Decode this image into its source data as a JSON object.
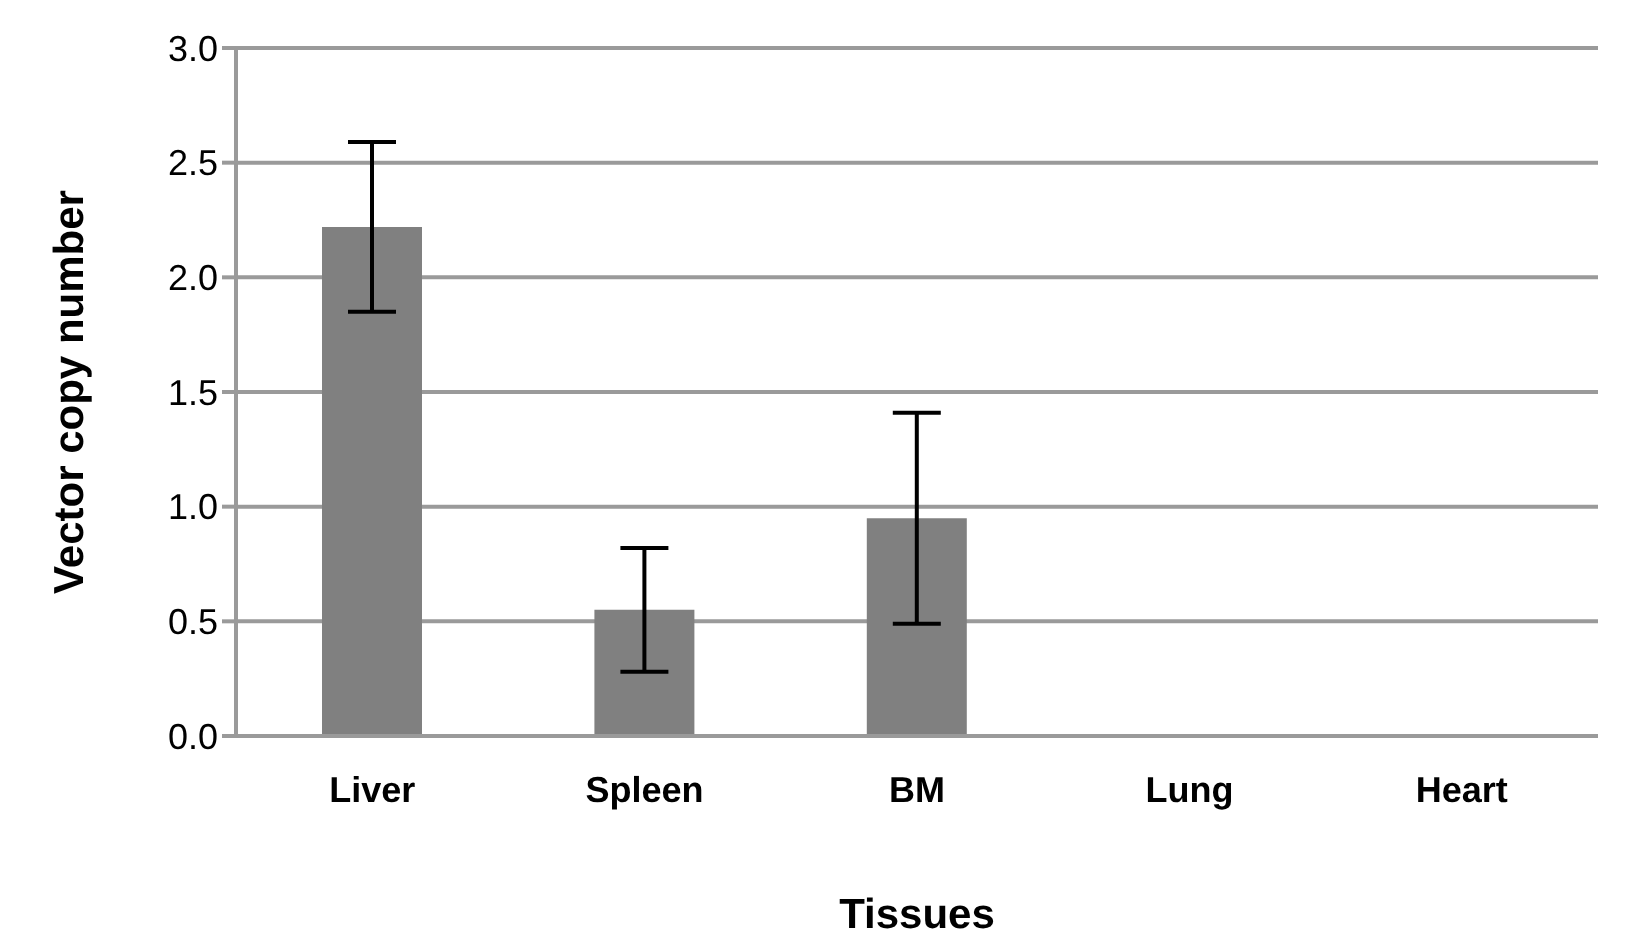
{
  "chart_data": {
    "type": "bar",
    "xlabel": "Tissues",
    "ylabel": "Vector copy number",
    "categories": [
      "Liver",
      "Spleen",
      "BM",
      "Lung",
      "Heart"
    ],
    "values": [
      2.22,
      0.55,
      0.95,
      0,
      0
    ],
    "color": "#808080",
    "errors": [
      0.37,
      0.27,
      0.46,
      null,
      null
    ],
    "ylim": [
      0,
      3
    ],
    "yticks": [
      {
        "value": 0,
        "label": "0.0"
      },
      {
        "value": 0.5,
        "label": "0.5"
      },
      {
        "value": 1,
        "label": "1.0"
      },
      {
        "value": 1.5,
        "label": "1.5"
      },
      {
        "value": 2,
        "label": "2.0"
      },
      {
        "value": 2.5,
        "label": "2.5"
      },
      {
        "value": 3,
        "label": "3.0"
      }
    ],
    "grid": "y"
  }
}
